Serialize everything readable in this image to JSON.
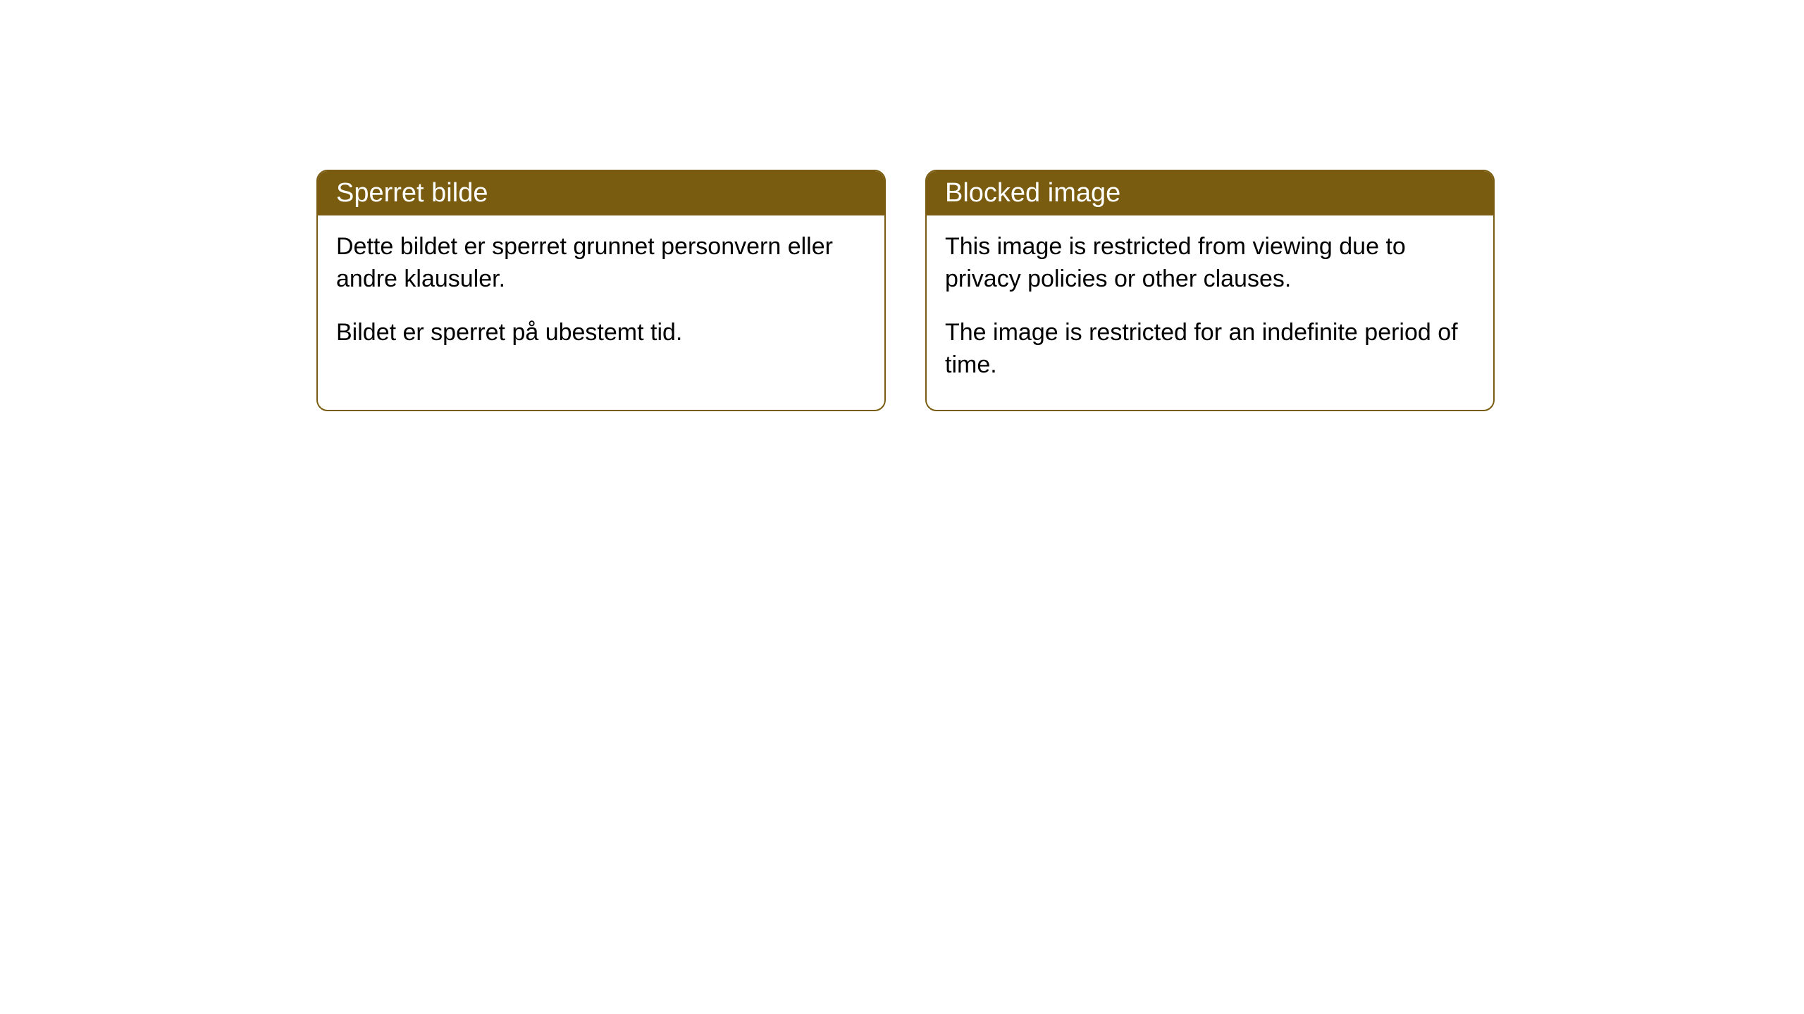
{
  "cards": [
    {
      "title": "Sperret bilde",
      "paragraphs": [
        "Dette bildet er sperret grunnet personvern eller andre klausuler.",
        "Bildet er sperret på ubestemt tid."
      ]
    },
    {
      "title": "Blocked image",
      "paragraphs": [
        "This image is restricted from viewing due to privacy policies or other clauses.",
        "The image is restricted for an indefinite period of time."
      ]
    }
  ],
  "colors": {
    "header_bg": "#7a5c10",
    "header_text": "#ffffff",
    "border": "#7a5c10",
    "body_bg": "#ffffff",
    "body_text": "#000000"
  }
}
